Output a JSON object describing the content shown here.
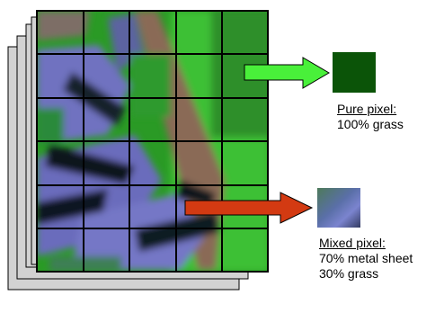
{
  "diagram": {
    "grid": {
      "rows": 6,
      "cols": 5
    },
    "pure_pixel": {
      "heading": "Pure pixel:",
      "line1": "100% grass",
      "swatch_color": "#0b5408",
      "arrow_color": "#49f03a"
    },
    "mixed_pixel": {
      "heading": "Mixed pixel:",
      "line1": "70% metal sheet",
      "line2": "30% grass",
      "arrow_color": "#d33a12"
    },
    "colors": {
      "grass_dark": "#1f8a1c",
      "grass_bright": "#3fc23a",
      "metal": "#6a6ebc",
      "shadow": "#141c24",
      "soil": "#8d6e5a",
      "layer_fill": "#d2d2d2",
      "grid_line": "#000000"
    }
  }
}
